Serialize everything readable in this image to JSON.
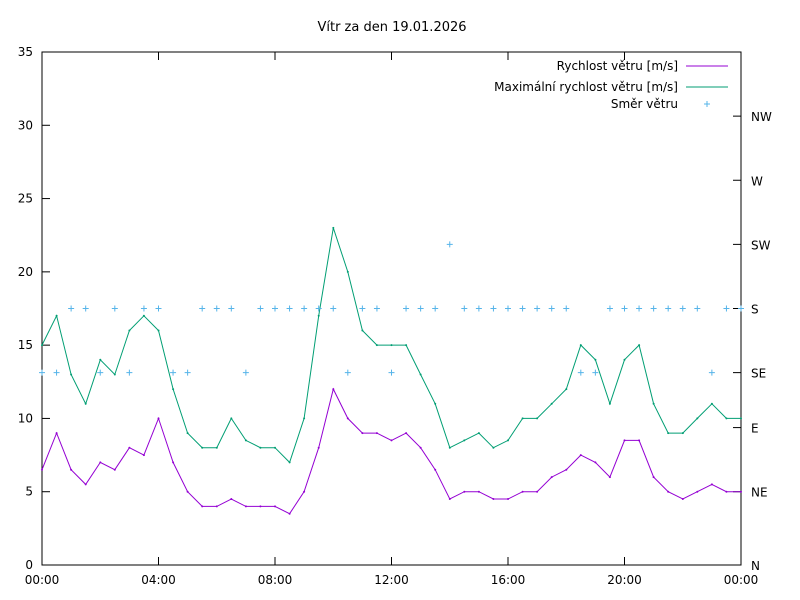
{
  "chart_data": {
    "type": "line",
    "title": "Vítr za den 19.01.2026",
    "xlabel": "",
    "ylabel": "",
    "xlim": [
      0,
      24
    ],
    "ylim": [
      0,
      35
    ],
    "x_tick_labels": [
      "00:00",
      "04:00",
      "08:00",
      "12:00",
      "16:00",
      "20:00",
      "00:00"
    ],
    "x_tick_values": [
      0,
      4,
      8,
      12,
      16,
      20,
      24
    ],
    "y_ticks": [
      0,
      5,
      10,
      15,
      20,
      25,
      30,
      35
    ],
    "y2_tick_labels": [
      "N",
      "NE",
      "E",
      "SE",
      "S",
      "SW",
      "W",
      "NW"
    ],
    "y2_tick_values": [
      0,
      5,
      9.375,
      13.125,
      17.5,
      21.875,
      26.25,
      30.625
    ],
    "grid": false,
    "legend_position": "top-right",
    "series": [
      {
        "name": "Rychlost větru [m/s]",
        "style": "line",
        "color": "#9400d3",
        "x": [
          0,
          0.5,
          1,
          1.5,
          2,
          2.5,
          3,
          3.5,
          4,
          4.5,
          5,
          5.5,
          6,
          6.5,
          7,
          7.5,
          8,
          8.5,
          9,
          9.5,
          10,
          10.5,
          11,
          11.5,
          12,
          12.5,
          13,
          13.5,
          14,
          14.5,
          15,
          15.5,
          16,
          16.5,
          17,
          17.5,
          18,
          18.5,
          19,
          19.5,
          20,
          20.5,
          21,
          21.5,
          22,
          22.5,
          23,
          23.5,
          24
        ],
        "values": [
          6.5,
          9,
          6.5,
          5.5,
          7,
          6.5,
          8,
          7.5,
          10,
          7,
          5,
          4,
          4,
          4.5,
          4,
          4,
          4,
          3.5,
          5,
          8,
          12,
          10,
          9,
          9,
          8.5,
          9,
          8,
          6.5,
          4.5,
          5,
          5,
          4.5,
          4.5,
          5,
          5,
          6,
          6.5,
          7.5,
          7,
          6,
          8.5,
          8.5,
          6,
          5,
          4.5,
          5,
          5.5,
          5,
          5
        ]
      },
      {
        "name": "Maximální rychlost větru [m/s]",
        "style": "line",
        "color": "#009e73",
        "x": [
          0,
          0.5,
          1,
          1.5,
          2,
          2.5,
          3,
          3.5,
          4,
          4.5,
          5,
          5.5,
          6,
          6.5,
          7,
          7.5,
          8,
          8.5,
          9,
          9.5,
          10,
          10.5,
          11,
          11.5,
          12,
          12.5,
          13,
          13.5,
          14,
          14.5,
          15,
          15.5,
          16,
          16.5,
          17,
          17.5,
          18,
          18.5,
          19,
          19.5,
          20,
          20.5,
          21,
          21.5,
          22,
          22.5,
          23,
          23.5,
          24
        ],
        "values": [
          15,
          17,
          13,
          11,
          14,
          13,
          16,
          17,
          16,
          12,
          9,
          8,
          8,
          10,
          8.5,
          8,
          8,
          7,
          10,
          17,
          23,
          20,
          16,
          15,
          15,
          15,
          13,
          11,
          8,
          8.5,
          9,
          8,
          8.5,
          10,
          10,
          11,
          12,
          15,
          14,
          11,
          14,
          15,
          11,
          9,
          9,
          10,
          11,
          10,
          10
        ]
      },
      {
        "name": "Směr větru",
        "style": "points",
        "marker": "+",
        "color": "#56b4e9",
        "x": [
          0,
          0.5,
          1,
          1.5,
          2,
          2.5,
          3,
          3.5,
          4,
          4.5,
          5,
          5.5,
          6,
          6.5,
          7,
          7.5,
          8,
          8.5,
          9,
          9.5,
          10,
          10.5,
          11,
          11.5,
          12,
          12.5,
          13,
          13.5,
          14,
          14.5,
          15,
          15.5,
          16,
          16.5,
          17,
          17.5,
          18,
          18.5,
          19,
          19.5,
          20,
          20.5,
          21,
          21.5,
          22,
          22.5,
          23,
          23.5,
          24
        ],
        "values": [
          13.125,
          13.125,
          17.5,
          17.5,
          13.125,
          17.5,
          13.125,
          17.5,
          17.5,
          13.125,
          13.125,
          17.5,
          17.5,
          17.5,
          13.125,
          17.5,
          17.5,
          17.5,
          17.5,
          17.5,
          17.5,
          13.125,
          17.5,
          17.5,
          13.125,
          17.5,
          17.5,
          17.5,
          21.875,
          17.5,
          17.5,
          17.5,
          17.5,
          17.5,
          17.5,
          17.5,
          17.5,
          13.125,
          13.125,
          17.5,
          17.5,
          17.5,
          17.5,
          17.5,
          17.5,
          17.5,
          13.125,
          17.5,
          17.5
        ]
      }
    ]
  }
}
